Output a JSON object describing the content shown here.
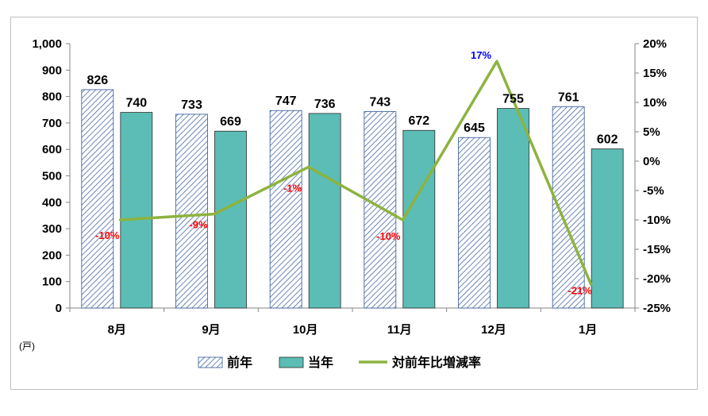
{
  "chart_data": {
    "type": "bar",
    "categories": [
      "8月",
      "9月",
      "10月",
      "11月",
      "12月",
      "1月"
    ],
    "series": [
      {
        "name": "前年",
        "values": [
          826,
          733,
          747,
          743,
          645,
          761
        ],
        "color": "#2f5597",
        "fill": "hatched"
      },
      {
        "name": "当年",
        "values": [
          740,
          669,
          736,
          672,
          755,
          602
        ],
        "color": "#5bbdb5"
      },
      {
        "name": "対前年比増減率",
        "type": "line",
        "axis": "right",
        "values": [
          -10,
          -9,
          -1,
          -10,
          17,
          -21
        ],
        "labels": [
          "-10%",
          "-9%",
          "-1%",
          "-10%",
          "17%",
          "-21%"
        ],
        "color": "#8db33f"
      }
    ],
    "unit_label": "(戸)",
    "yleft": {
      "min": 0,
      "max": 1000,
      "step": 100,
      "ticks": [
        "0",
        "100",
        "200",
        "300",
        "400",
        "500",
        "600",
        "700",
        "800",
        "900",
        "1,000"
      ]
    },
    "yright": {
      "min": -25,
      "max": 20,
      "step": 5,
      "ticks": [
        "-25%",
        "-20%",
        "-15%",
        "-10%",
        "-5%",
        "0%",
        "5%",
        "10%",
        "15%",
        "20%"
      ]
    },
    "label_colors": {
      "negative": "#ff0000",
      "positive": "#0000ff"
    },
    "legend_position": "bottom",
    "grid": false
  }
}
